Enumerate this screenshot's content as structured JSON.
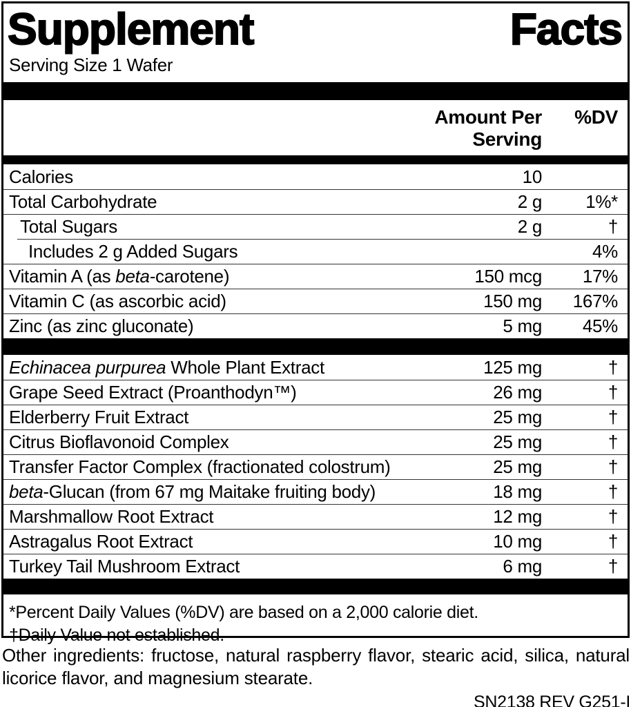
{
  "title": {
    "word1": "Supplement",
    "word2": "Facts"
  },
  "serving_size": "Serving Size 1 Wafer",
  "columns": {
    "amount": "Amount Per Serving",
    "dv": "%DV"
  },
  "nutrient_rows": [
    {
      "segments": [
        {
          "t": "Calories"
        }
      ],
      "amount": "10",
      "dv": "",
      "indent": 0,
      "rule": "none"
    },
    {
      "segments": [
        {
          "t": "Total Carbohydrate"
        }
      ],
      "amount": "2 g",
      "dv": "1%*",
      "indent": 0,
      "rule": "full"
    },
    {
      "segments": [
        {
          "t": "Total Sugars"
        }
      ],
      "amount": "2 g",
      "dv": "†",
      "indent": 1,
      "rule": "full"
    },
    {
      "segments": [
        {
          "t": "Includes 2 g Added Sugars"
        }
      ],
      "amount": "",
      "dv": "4%",
      "indent": 2,
      "rule": "indent"
    },
    {
      "segments": [
        {
          "t": "Vitamin A (as "
        },
        {
          "t": "beta",
          "i": true
        },
        {
          "t": "-carotene)"
        }
      ],
      "amount": "150 mcg",
      "dv": "17%",
      "indent": 0,
      "rule": "full"
    },
    {
      "segments": [
        {
          "t": "Vitamin C (as ascorbic acid)"
        }
      ],
      "amount": "150 mg",
      "dv": "167%",
      "indent": 0,
      "rule": "full"
    },
    {
      "segments": [
        {
          "t": "Zinc (as zinc gluconate)"
        }
      ],
      "amount": "5 mg",
      "dv": "45%",
      "indent": 0,
      "rule": "full"
    }
  ],
  "botanical_rows": [
    {
      "segments": [
        {
          "t": "Echinacea purpurea",
          "i": true
        },
        {
          "t": " Whole Plant Extract"
        }
      ],
      "amount": "125 mg",
      "dv": "†",
      "indent": 0,
      "rule": "none"
    },
    {
      "segments": [
        {
          "t": "Grape Seed Extract (Proanthodyn™)"
        }
      ],
      "amount": "26 mg",
      "dv": "†",
      "indent": 0,
      "rule": "full"
    },
    {
      "segments": [
        {
          "t": "Elderberry Fruit Extract"
        }
      ],
      "amount": "25 mg",
      "dv": "†",
      "indent": 0,
      "rule": "full"
    },
    {
      "segments": [
        {
          "t": "Citrus Bioflavonoid Complex"
        }
      ],
      "amount": "25 mg",
      "dv": "†",
      "indent": 0,
      "rule": "full"
    },
    {
      "segments": [
        {
          "t": "Transfer Factor Complex (fractionated colostrum)"
        }
      ],
      "amount": "25 mg",
      "dv": "†",
      "indent": 0,
      "rule": "full"
    },
    {
      "segments": [
        {
          "t": "beta",
          "i": true
        },
        {
          "t": "-Glucan (from 67 mg Maitake fruiting body)"
        }
      ],
      "amount": "18 mg",
      "dv": "†",
      "indent": 0,
      "rule": "full"
    },
    {
      "segments": [
        {
          "t": "Marshmallow Root Extract"
        }
      ],
      "amount": "12 mg",
      "dv": "†",
      "indent": 0,
      "rule": "full"
    },
    {
      "segments": [
        {
          "t": "Astragalus Root Extract"
        }
      ],
      "amount": "10 mg",
      "dv": "†",
      "indent": 0,
      "rule": "full"
    },
    {
      "segments": [
        {
          "t": "Turkey Tail Mushroom Extract"
        }
      ],
      "amount": "6 mg",
      "dv": "†",
      "indent": 0,
      "rule": "full"
    }
  ],
  "footnotes": {
    "line1": "*Percent Daily Values (%DV) are based on a 2,000 calorie diet.",
    "line2": "†Daily Value not established."
  },
  "other_ingredients": "Other ingredients: fructose, natural raspberry flavor, stearic acid, silica, natural licorice flavor, and magnesium stearate.",
  "product_code": "SN2138 REV G251-I"
}
